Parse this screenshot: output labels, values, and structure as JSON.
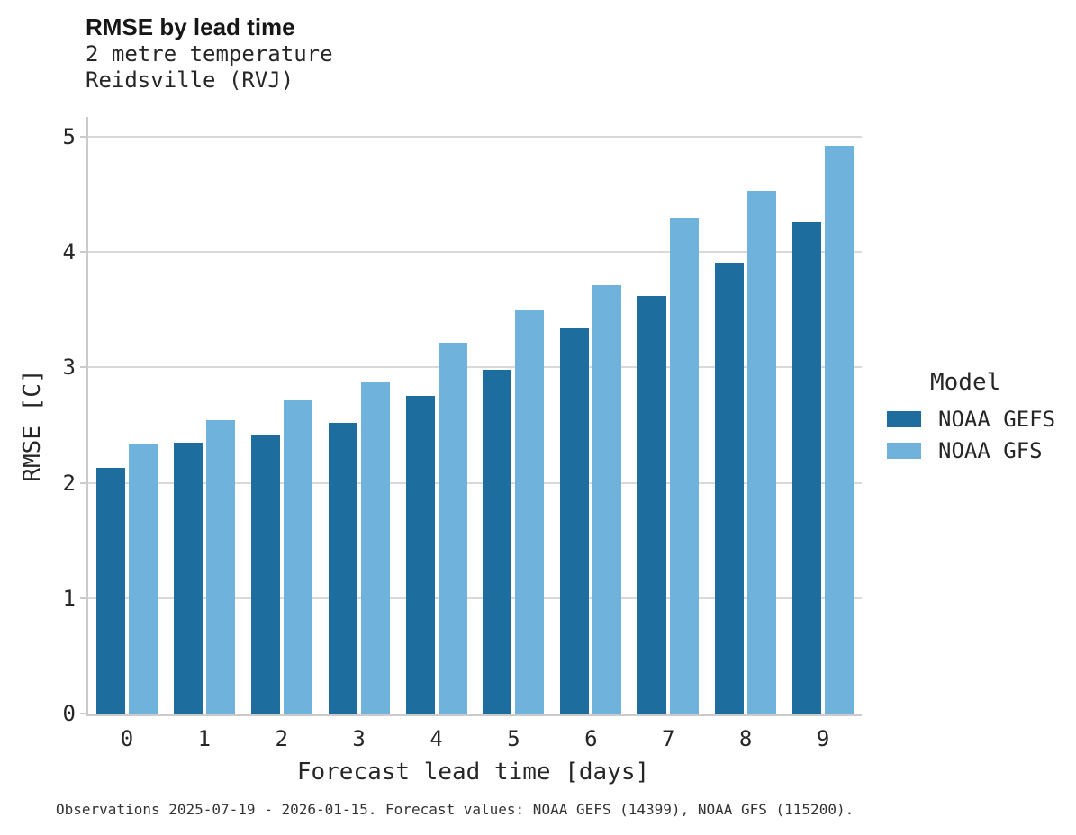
{
  "header": {
    "title": "RMSE by lead time",
    "subtitle_line1": "2 metre temperature",
    "subtitle_line2": "Reidsville (RVJ)"
  },
  "legend": {
    "title": "Model",
    "entries": [
      {
        "label": "NOAA GEFS",
        "color": "#1d6e9e"
      },
      {
        "label": "NOAA GFS",
        "color": "#6fb2dc"
      }
    ]
  },
  "footer": {
    "text": "Observations 2025-07-19 - 2026-01-15. Forecast values: NOAA GEFS (14399), NOAA GFS (115200)."
  },
  "chart_data": {
    "type": "bar",
    "title": "RMSE by lead time",
    "subtitle": [
      "2 metre temperature",
      "Reidsville (RVJ)"
    ],
    "xlabel": "Forecast lead time [days]",
    "ylabel": "RMSE [C]",
    "categories": [
      "0",
      "1",
      "2",
      "3",
      "4",
      "5",
      "6",
      "7",
      "8",
      "9"
    ],
    "series": [
      {
        "name": "NOAA GEFS",
        "color": "#1d6e9e",
        "values": [
          2.13,
          2.35,
          2.42,
          2.52,
          2.75,
          2.98,
          3.34,
          3.62,
          3.91,
          4.26
        ]
      },
      {
        "name": "NOAA GFS",
        "color": "#6fb2dc",
        "values": [
          2.34,
          2.54,
          2.72,
          2.87,
          3.21,
          3.49,
          3.71,
          4.3,
          4.53,
          4.92
        ]
      }
    ],
    "ylim": [
      0,
      5.17
    ],
    "yticks": [
      0,
      1,
      2,
      3,
      4,
      5
    ],
    "grid": true,
    "legend_position": "right",
    "colors": {
      "grid": "#d9d9d9",
      "spine": "#cbcbcb"
    }
  }
}
